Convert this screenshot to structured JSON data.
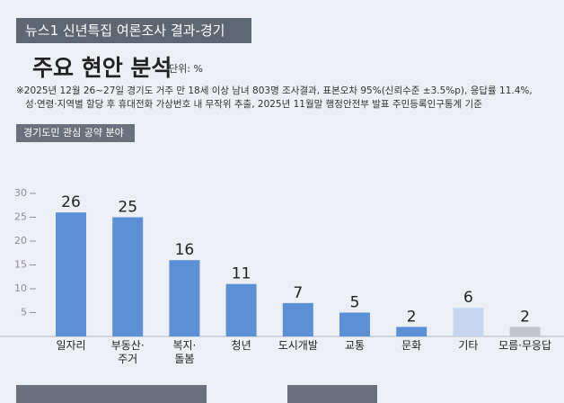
{
  "header": "뉴스1 신년특집 여론조사 결과-경기",
  "title": "주요 현안 분석",
  "unit": "단위: %",
  "notes": [
    "※2025년 12월 26~27일 경기도 거주 만 18세 이상 남녀 803명 조사결과, 표본오차 95%(신뢰수준 ±3.5%p), 응답률 11.4%,",
    "성·연령·지역별 할당 후 휴대전화 가상번호 내 무작위 추출,  2025년 11월말 행정안전부 발표 주민등록인구통계 기준"
  ],
  "chart_data": {
    "type": "bar",
    "title": "경기도민 관심 공약 분야",
    "categories": [
      "일자리",
      "부동산·\n주거",
      "복지·\n돌봄",
      "청년",
      "도시개발",
      "교통",
      "문화",
      "기타",
      "모름·무응답"
    ],
    "values": [
      26,
      25,
      16,
      11,
      7,
      5,
      2,
      6,
      2
    ],
    "colors": [
      "#5b8fd6",
      "#5b8fd6",
      "#5b8fd6",
      "#5b8fd6",
      "#5b8fd6",
      "#5b8fd6",
      "#5b8fd6",
      "#c8d5ee",
      "#c3c7cd"
    ],
    "ylim": [
      0,
      30
    ],
    "yticks": [
      5,
      10,
      15,
      20,
      25,
      30
    ],
    "grid": false
  }
}
